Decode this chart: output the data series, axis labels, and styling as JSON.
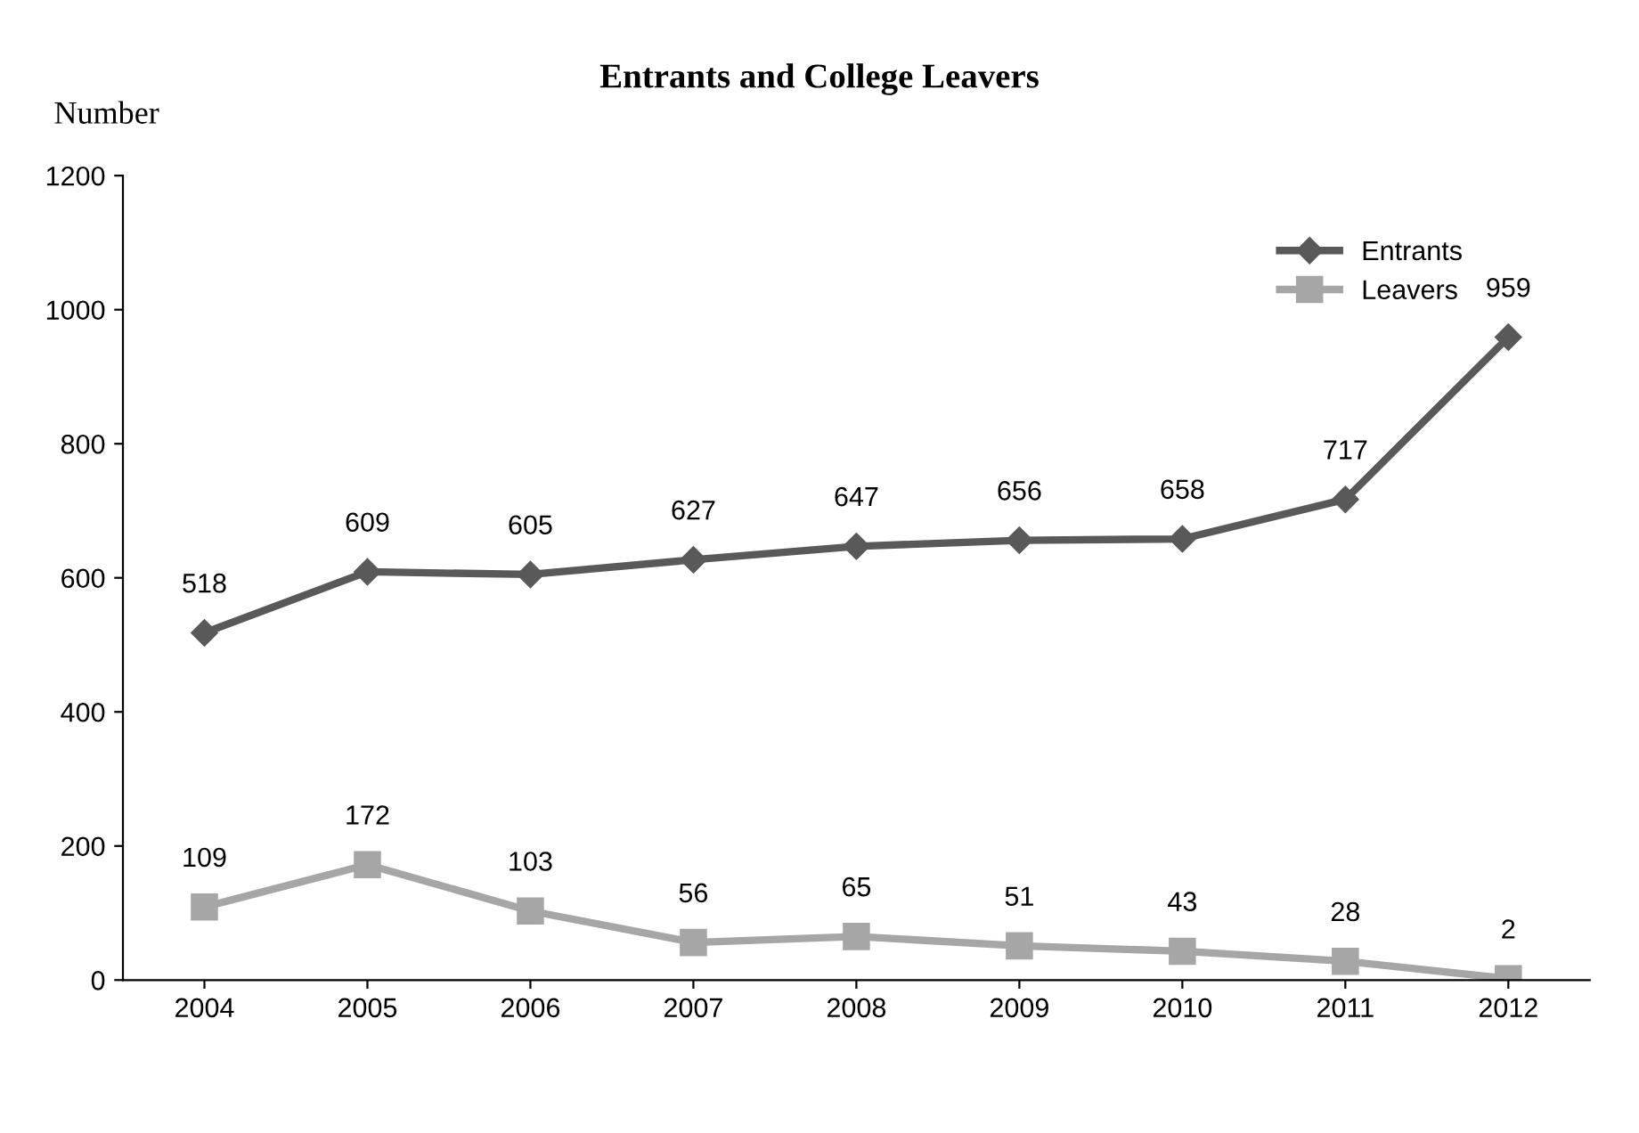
{
  "chart_data": {
    "type": "line",
    "title": "Entrants and College Leavers",
    "ylabel": "Number",
    "categories": [
      "2004",
      "2005",
      "2006",
      "2007",
      "2008",
      "2009",
      "2010",
      "2011",
      "2012"
    ],
    "series": [
      {
        "name": "Entrants",
        "color": "#595959",
        "marker": "diamond",
        "values": [
          518,
          609,
          605,
          627,
          647,
          656,
          658,
          717,
          959
        ]
      },
      {
        "name": "Leavers",
        "color": "#a6a6a6",
        "marker": "square",
        "values": [
          109,
          172,
          103,
          56,
          65,
          51,
          43,
          28,
          2
        ]
      }
    ],
    "ylim": [
      0,
      1200
    ],
    "yticks": [
      0,
      200,
      400,
      600,
      800,
      1000,
      1200
    ],
    "data_labels": true,
    "legend": "top right",
    "grid": false,
    "line_style": "solid"
  }
}
